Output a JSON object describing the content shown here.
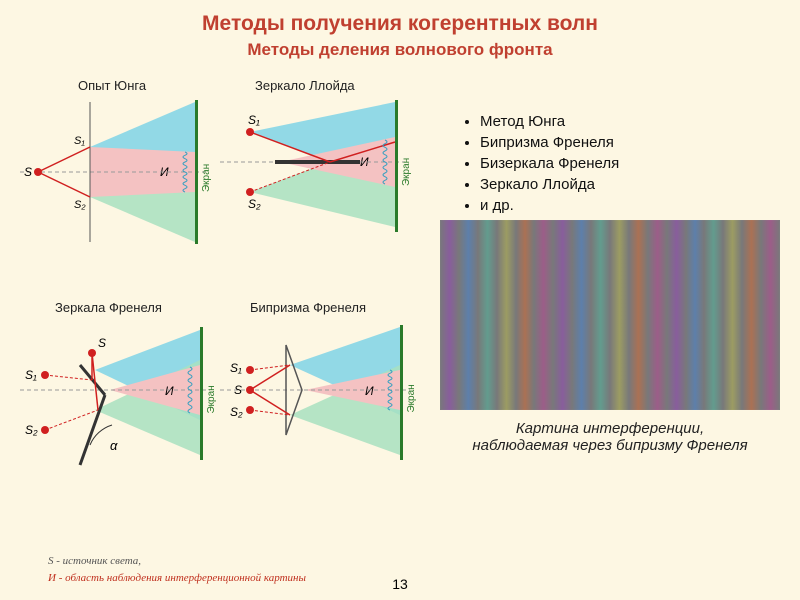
{
  "title": "Методы получения когерентных волн",
  "subtitle": "Методы деления волнового фронта",
  "bullets": [
    "Метод Юнга",
    "Бипризма Френеля",
    "Бизеркала Френеля",
    "Зеркало Ллойда",
    "и др."
  ],
  "caption_l1": "Картина интерференции,",
  "caption_l2": "наблюдаемая через бипризму Френеля",
  "diagrams": {
    "d1": "Опыт Юнга",
    "d2": "Зеркало Ллойда",
    "d3": "Зеркала Френеля",
    "d4": "Бипризма Френеля"
  },
  "labels": {
    "S": "S",
    "S1": "S₁",
    "S2": "S₂",
    "I": "И",
    "alpha": "α",
    "ekran": "Экран"
  },
  "legend_s": "S  - источник света,",
  "legend_i": "И  - область наблюдения интерференционной картины",
  "pagenum": "13",
  "colors": {
    "upper_cone": "#7fd3e6",
    "lower_cone": "#a8e0c0",
    "overlap": "#f4c2c2",
    "ray": "#d02020",
    "mirror": "#333",
    "axis": "#999",
    "screen_border": "#2a7a2a",
    "wave": "#3aa0c0",
    "bg": "#fdf7e3"
  },
  "fringes": {
    "count": 18,
    "base": "#78787a",
    "colors": [
      "#8a5aa0",
      "#5a80b0",
      "#60a090",
      "#a0a060",
      "#b07050",
      "#a05a8a"
    ]
  },
  "icon_fill": "#c0301e"
}
